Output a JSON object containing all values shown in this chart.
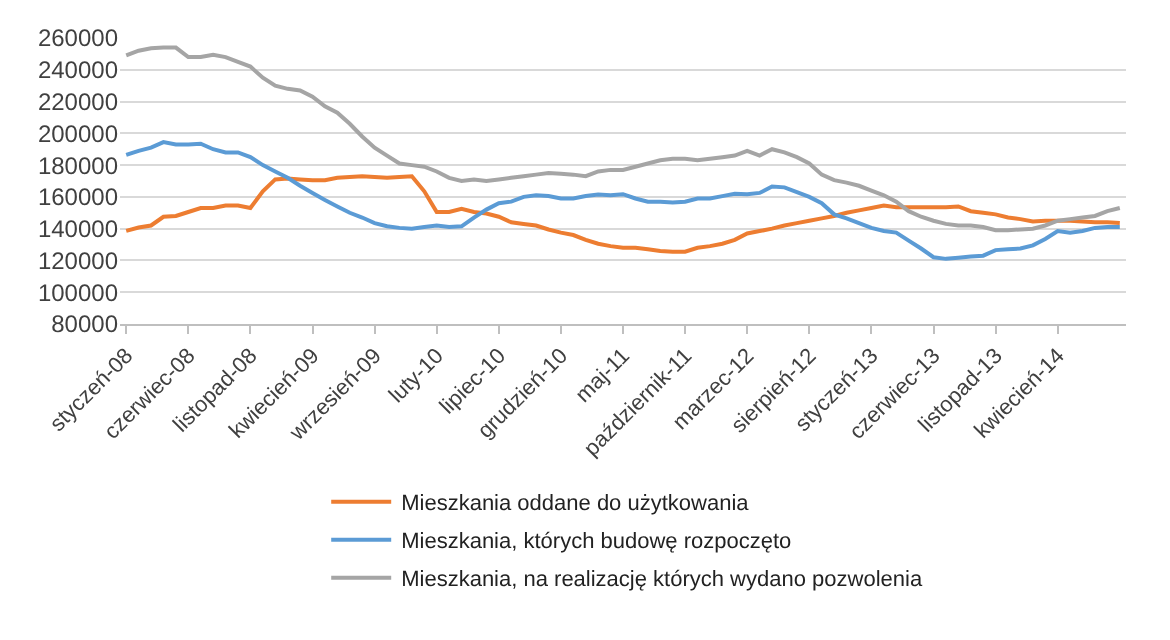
{
  "chart_data": {
    "type": "line",
    "categories": [
      "styczeń-08",
      null,
      null,
      null,
      null,
      "czerwiec-08",
      null,
      null,
      null,
      null,
      "listopad-08",
      null,
      null,
      null,
      null,
      "kwiecień-09",
      null,
      null,
      null,
      null,
      "wrzesień-09",
      null,
      null,
      null,
      null,
      "luty-10",
      null,
      null,
      null,
      null,
      "lipiec-10",
      null,
      null,
      null,
      null,
      "grudzień-10",
      null,
      null,
      null,
      null,
      "maj-11",
      null,
      null,
      null,
      null,
      "październik-11",
      null,
      null,
      null,
      null,
      "marzec-12",
      null,
      null,
      null,
      null,
      "sierpień-12",
      null,
      null,
      null,
      null,
      "styczeń-13",
      null,
      null,
      null,
      null,
      "czerwiec-13",
      null,
      null,
      null,
      null,
      "listopad-13",
      null,
      null,
      null,
      null,
      "kwiecień-14",
      null,
      null,
      null,
      null,
      null
    ],
    "series": [
      {
        "name": "Mieszkania oddane do użytkowania",
        "color": "#ed7d31",
        "values": [
          138600,
          140700,
          142000,
          147500,
          148000,
          150500,
          153000,
          153000,
          154500,
          154500,
          153000,
          163500,
          171000,
          171500,
          171000,
          170500,
          170500,
          172000,
          172500,
          173000,
          172500,
          172000,
          172500,
          173000,
          163500,
          150500,
          150500,
          152500,
          150500,
          149500,
          147500,
          144000,
          143000,
          142000,
          139500,
          137500,
          136000,
          133000,
          130500,
          129000,
          128000,
          128000,
          127000,
          126000,
          125500,
          125500,
          128000,
          129000,
          130500,
          133000,
          137000,
          138500,
          140000,
          142000,
          143500,
          145000,
          146500,
          148000,
          150000,
          151500,
          153000,
          154500,
          153500,
          153500,
          153500,
          153500,
          153500,
          154000,
          151000,
          150000,
          149000,
          147000,
          146000,
          144500,
          145000,
          145000,
          145000,
          144500,
          144000,
          144000,
          143500
        ]
      },
      {
        "name": "Mieszkania, których budowę rozpoczęto",
        "color": "#5b9bd5",
        "values": [
          186400,
          189000,
          191000,
          194500,
          193000,
          193000,
          193500,
          190000,
          188000,
          188000,
          185000,
          180000,
          176000,
          172000,
          167000,
          162500,
          158000,
          154000,
          150000,
          147000,
          143500,
          141500,
          140500,
          140000,
          141000,
          142000,
          141000,
          141500,
          147000,
          152000,
          156000,
          157000,
          160000,
          161000,
          160500,
          159000,
          159000,
          160500,
          161500,
          161000,
          161700,
          159000,
          157000,
          157000,
          156500,
          157000,
          159000,
          159000,
          160500,
          162000,
          161700,
          162500,
          166500,
          166000,
          163000,
          160000,
          156000,
          149000,
          146500,
          143500,
          140500,
          138500,
          137500,
          132500,
          127500,
          122000,
          121000,
          121700,
          122500,
          123000,
          126500,
          127000,
          127500,
          129500,
          133500,
          138500,
          137500,
          138500,
          140500,
          141000,
          141000
        ]
      },
      {
        "name": "Mieszkania, na realizację których wydano pozwolenia",
        "color": "#a5a5a5",
        "values": [
          249000,
          252000,
          253500,
          254000,
          254000,
          248000,
          248000,
          249500,
          248000,
          245000,
          242000,
          235000,
          230000,
          228000,
          227000,
          223000,
          217000,
          213000,
          206000,
          198000,
          191000,
          186000,
          181000,
          180000,
          179000,
          176000,
          172000,
          170000,
          171000,
          170000,
          171000,
          172000,
          173000,
          174000,
          175000,
          174500,
          174000,
          173000,
          176000,
          177000,
          177000,
          179000,
          181000,
          183000,
          184000,
          184000,
          183000,
          184000,
          185000,
          186000,
          189000,
          186000,
          190000,
          188000,
          185000,
          181000,
          174000,
          170500,
          169000,
          167000,
          164000,
          161000,
          157000,
          151000,
          147500,
          145000,
          143000,
          142000,
          142000,
          141000,
          139000,
          139000,
          139500,
          140000,
          142000,
          145000,
          146000,
          147000,
          148000,
          151000,
          153000
        ]
      }
    ],
    "ylim": [
      80000,
      260000
    ],
    "yticks": [
      80000,
      100000,
      120000,
      140000,
      160000,
      180000,
      200000,
      220000,
      240000,
      260000
    ],
    "grid": "y",
    "legend": "bottom",
    "marker": "none",
    "line_style": "solid"
  }
}
